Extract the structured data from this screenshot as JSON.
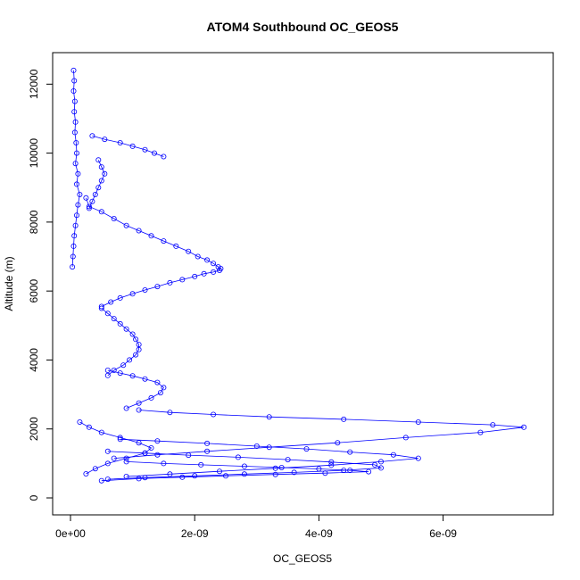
{
  "chart_data": {
    "type": "scatter",
    "title": "ATOM4 Southbound OC_GEOS5",
    "xlabel": "OC_GEOS5",
    "ylabel": "Altitude (m)",
    "xlim": [
      0,
      7.5e-09
    ],
    "ylim": [
      0,
      12500
    ],
    "x_ticks": [
      0,
      2e-09,
      4e-09,
      6e-09
    ],
    "x_tick_labels": [
      "0e+00",
      "2e-09",
      "4e-09",
      "6e-09"
    ],
    "y_ticks": [
      0,
      2000,
      4000,
      6000,
      8000,
      10000,
      12000
    ],
    "y_tick_labels": [
      "0",
      "2000",
      "4000",
      "6000",
      "8000",
      "10000",
      "12000"
    ],
    "grid": false,
    "series": [
      {
        "color": "#0000ff",
        "marker": "open-circle",
        "line": true,
        "segments": [
          {
            "x": [
              5e-11,
              6e-11,
              5e-11,
              7e-11,
              6e-11,
              8e-11,
              7e-11,
              9e-11,
              1e-10,
              8e-11,
              1.2e-10,
              1e-10,
              1.5e-10,
              1.2e-10,
              1e-10,
              8e-11,
              6e-11,
              5e-11,
              4e-11,
              3e-11
            ],
            "y": [
              12400,
              12100,
              11800,
              11500,
              11200,
              10900,
              10600,
              10300,
              10000,
              9700,
              9400,
              9100,
              8800,
              8500,
              8200,
              7900,
              7600,
              7300,
              7000,
              6700
            ]
          },
          {
            "x": [
              2.5e-10,
              3e-10,
              5e-10,
              7e-10,
              9e-10,
              1.1e-09,
              1.3e-09,
              1.5e-09,
              1.7e-09,
              1.9e-09,
              2.05e-09,
              2.2e-09,
              2.3e-09,
              2.38e-09,
              2.42e-09,
              2.4e-09,
              2.3e-09,
              2.15e-09,
              2e-09,
              1.8e-09,
              1.6e-09,
              1.4e-09,
              1.2e-09,
              1e-09,
              8e-10,
              6.5e-10,
              5e-10
            ],
            "y": [
              8700,
              8450,
              8300,
              8100,
              7900,
              7750,
              7600,
              7450,
              7300,
              7150,
              7000,
              6900,
              6800,
              6700,
              6650,
              6600,
              6550,
              6500,
              6420,
              6330,
              6240,
              6130,
              6030,
              5920,
              5800,
              5680,
              5550
            ]
          },
          {
            "x": [
              5e-10,
              6e-10,
              7e-10,
              8e-10,
              9e-10,
              1e-09,
              1.05e-09,
              1.1e-09,
              1.1e-09,
              1.05e-09,
              9.5e-10,
              8.5e-10,
              7e-10,
              6e-10
            ],
            "y": [
              5500,
              5350,
              5200,
              5050,
              4900,
              4750,
              4600,
              4450,
              4300,
              4150,
              4000,
              3850,
              3700,
              3550
            ]
          },
          {
            "x": [
              6e-10,
              8e-10,
              1e-09,
              1.2e-09,
              1.4e-09,
              1.5e-09,
              1.45e-09,
              1.3e-09,
              1.1e-09,
              9e-10
            ],
            "y": [
              3700,
              3620,
              3540,
              3450,
              3350,
              3200,
              3050,
              2900,
              2750,
              2600
            ]
          },
          {
            "x": [
              1.1e-09,
              1.6e-09,
              2.3e-09,
              3.2e-09,
              4.4e-09,
              5.6e-09,
              6.8e-09,
              7.3e-09,
              6.6e-09,
              5.4e-09,
              4.3e-09,
              3.2e-09,
              2.2e-09,
              1.4e-09,
              7e-10
            ],
            "y": [
              2550,
              2480,
              2420,
              2350,
              2280,
              2200,
              2120,
              2050,
              1900,
              1750,
              1600,
              1470,
              1350,
              1250,
              1150
            ]
          },
          {
            "x": [
              8e-10,
              1.4e-09,
              2.2e-09,
              3e-09,
              3.8e-09,
              4.5e-09,
              5.2e-09,
              5.6e-09,
              5e-09,
              4.2e-09,
              3.3e-09,
              2.4e-09,
              1.6e-09,
              9e-10
            ],
            "y": [
              1700,
              1650,
              1580,
              1500,
              1420,
              1330,
              1250,
              1150,
              1050,
              950,
              860,
              770,
              690,
              620
            ]
          },
          {
            "x": [
              6e-10,
              1.2e-09,
              1.9e-09,
              2.7e-09,
              3.5e-09,
              4.2e-09,
              4.9e-09,
              5e-09,
              4.4e-09,
              3.6e-09,
              2.8e-09,
              2e-09,
              1.2e-09,
              6e-10
            ],
            "y": [
              1350,
              1300,
              1240,
              1180,
              1110,
              1040,
              960,
              870,
              800,
              740,
              690,
              640,
              590,
              540
            ]
          },
          {
            "x": [
              9e-10,
              1.5e-09,
              2.1e-09,
              2.8e-09,
              3.4e-09,
              4e-09,
              4.5e-09,
              4.8e-09,
              4.1e-09,
              3.3e-09,
              2.5e-09,
              1.8e-09,
              1.1e-09,
              5e-10
            ],
            "y": [
              1050,
              1000,
              960,
              920,
              880,
              840,
              800,
              760,
              720,
              680,
              640,
              600,
              560,
              500
            ]
          },
          {
            "x": [
              1.5e-10,
              3e-10,
              5e-10,
              8e-10,
              1.1e-09,
              1.3e-09,
              1.2e-09,
              9e-10,
              6e-10,
              4e-10,
              2.5e-10
            ],
            "y": [
              2200,
              2050,
              1900,
              1750,
              1600,
              1450,
              1300,
              1150,
              1000,
              850,
              700
            ]
          },
          {
            "x": [
              3.5e-10,
              5.5e-10,
              8e-10,
              1e-09,
              1.2e-09,
              1.35e-09,
              1.5e-09
            ],
            "y": [
              10500,
              10400,
              10300,
              10200,
              10100,
              10000,
              9900
            ]
          },
          {
            "x": [
              4.5e-10,
              5e-10,
              5.5e-10,
              5e-10,
              4.5e-10,
              4e-10,
              3.5e-10,
              3e-10
            ],
            "y": [
              9800,
              9600,
              9400,
              9200,
              9000,
              8800,
              8600,
              8400
            ]
          }
        ]
      }
    ]
  }
}
